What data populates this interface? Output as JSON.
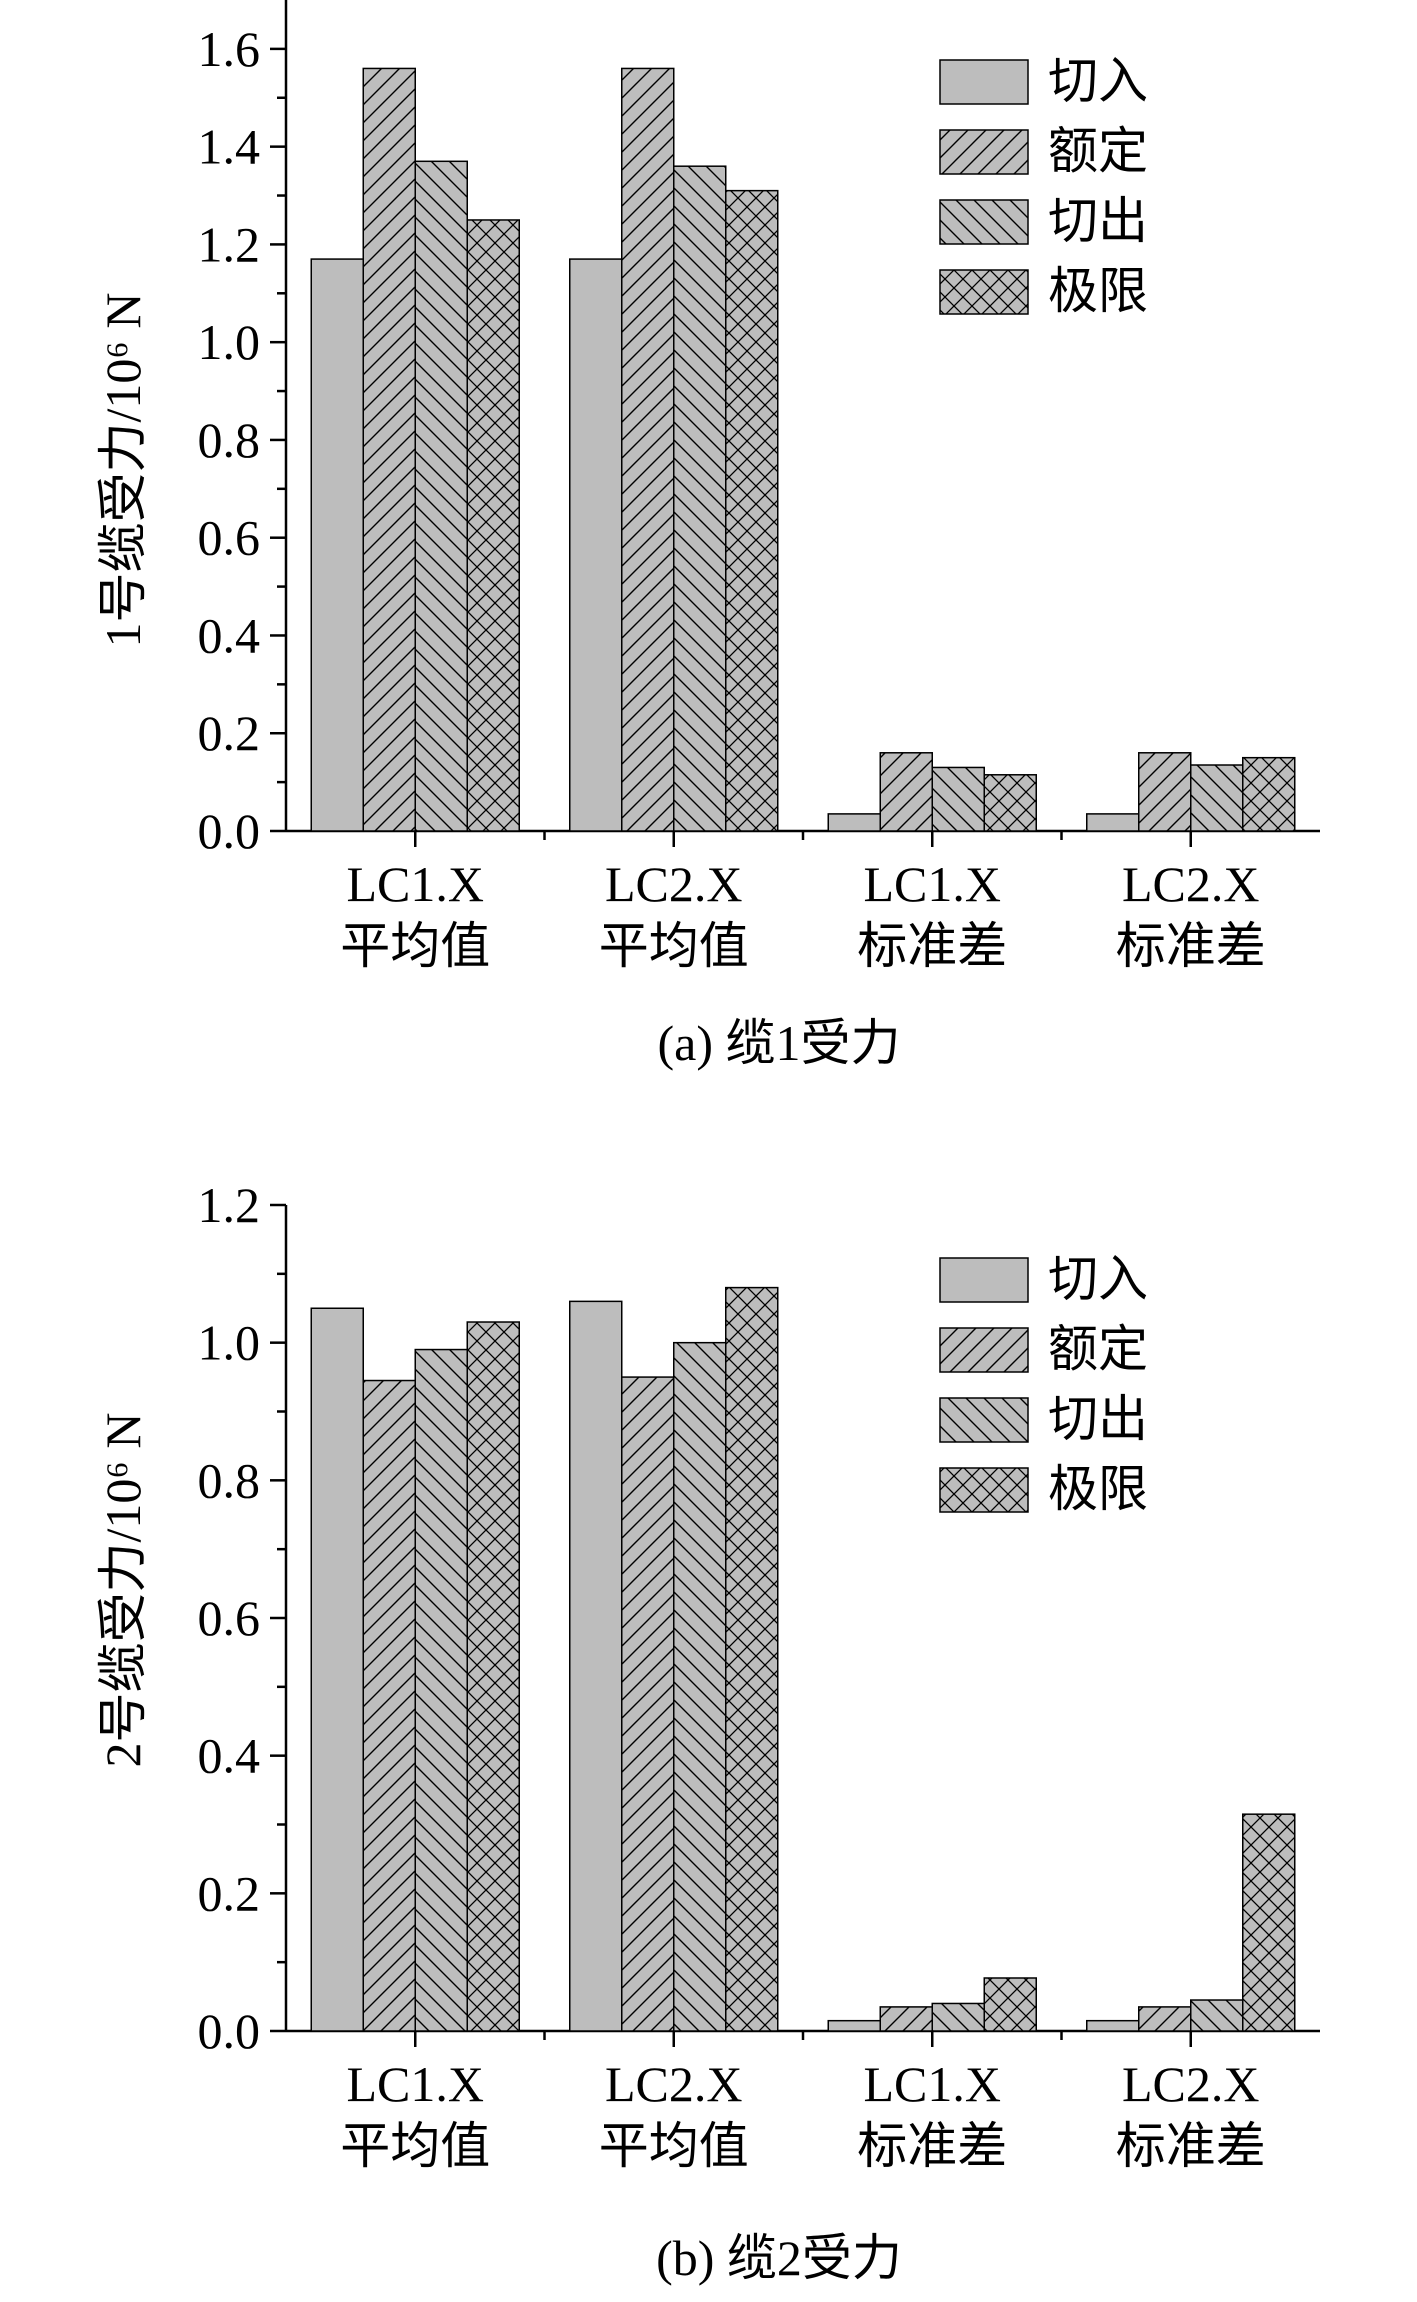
{
  "chart_data": [
    {
      "type": "bar",
      "panel_caption": "(a) 缆1受力",
      "ylabel": "1号缆受力/10⁶ N",
      "xlabel": "",
      "ylim": [
        0,
        1.7
      ],
      "yticks": [
        "0.0",
        "0.2",
        "0.4",
        "0.6",
        "0.8",
        "1.0",
        "1.2",
        "1.4",
        "1.6"
      ],
      "categories": [
        [
          "LC1.X",
          "平均值"
        ],
        [
          "LC2.X",
          "平均值"
        ],
        [
          "LC1.X",
          "标准差"
        ],
        [
          "LC2.X",
          "标准差"
        ]
      ],
      "series": [
        {
          "name": "切入",
          "pattern": "solid",
          "values": [
            1.17,
            1.17,
            0.035,
            0.035
          ]
        },
        {
          "name": "额定",
          "pattern": "forward-hatch",
          "values": [
            1.56,
            1.56,
            0.16,
            0.16
          ]
        },
        {
          "name": "切出",
          "pattern": "back-hatch",
          "values": [
            1.37,
            1.36,
            0.13,
            0.135
          ]
        },
        {
          "name": "极限",
          "pattern": "cross-hatch",
          "values": [
            1.25,
            1.31,
            0.115,
            0.15
          ]
        }
      ],
      "legend_position": "top-right",
      "grid": false
    },
    {
      "type": "bar",
      "panel_caption": "(b) 缆2受力",
      "ylabel": "2号缆受力/10⁶ N",
      "xlabel": "",
      "ylim": [
        0,
        1.2
      ],
      "yticks": [
        "0.0",
        "0.2",
        "0.4",
        "0.6",
        "0.8",
        "1.0",
        "1.2"
      ],
      "categories": [
        [
          "LC1.X",
          "平均值"
        ],
        [
          "LC2.X",
          "平均值"
        ],
        [
          "LC1.X",
          "标准差"
        ],
        [
          "LC2.X",
          "标准差"
        ]
      ],
      "series": [
        {
          "name": "切入",
          "pattern": "solid",
          "values": [
            1.05,
            1.06,
            0.015,
            0.015
          ]
        },
        {
          "name": "额定",
          "pattern": "forward-hatch",
          "values": [
            0.945,
            0.95,
            0.035,
            0.035
          ]
        },
        {
          "name": "切出",
          "pattern": "back-hatch",
          "values": [
            0.99,
            1.0,
            0.04,
            0.045
          ]
        },
        {
          "name": "极限",
          "pattern": "cross-hatch",
          "values": [
            1.03,
            1.08,
            0.077,
            0.315
          ]
        }
      ],
      "legend_position": "top-right",
      "grid": false
    }
  ],
  "colors": {
    "bar_fill": "#bdbdbd",
    "line": "#000000",
    "background": "#ffffff"
  }
}
